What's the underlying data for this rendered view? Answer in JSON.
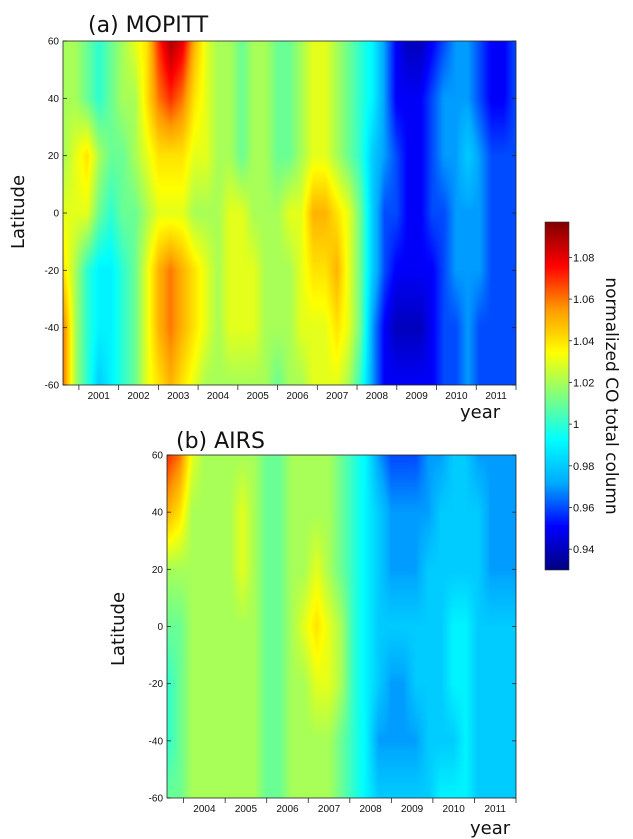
{
  "chart_data": {
    "type": "heatmap",
    "panels": [
      {
        "title": "(a) MOPITT",
        "xlabel": "year",
        "ylabel": "Latitude",
        "x_ticks": [
          "2001",
          "2002",
          "2003",
          "2004",
          "2005",
          "2006",
          "2007",
          "2008",
          "2009",
          "2010",
          "2011"
        ],
        "y_ticks": [
          "60",
          "40",
          "20",
          "0",
          "-20",
          "-40",
          "-60"
        ],
        "xlim": [
          2000.6,
          2012.0
        ],
        "ylim": [
          -60,
          60
        ],
        "time": [
          2000.6,
          2000.9,
          2001.2,
          2001.5,
          2001.8,
          2002.1,
          2002.4,
          2002.7,
          2003.0,
          2003.3,
          2003.6,
          2003.9,
          2004.2,
          2004.5,
          2004.8,
          2005.1,
          2005.4,
          2005.7,
          2006.0,
          2006.3,
          2006.6,
          2006.9,
          2007.2,
          2007.5,
          2007.8,
          2008.1,
          2008.4,
          2008.7,
          2009.0,
          2009.3,
          2009.6,
          2009.9,
          2010.2,
          2010.5,
          2010.8,
          2011.1,
          2011.4,
          2011.7,
          2012.0
        ],
        "lat": [
          60,
          40,
          20,
          0,
          -20,
          -40,
          -60
        ],
        "values": [
          [
            1.02,
            1.02,
            1.01,
            1.0,
            1.01,
            1.02,
            1.03,
            1.04,
            1.07,
            1.09,
            1.08,
            1.05,
            1.03,
            1.02,
            1.02,
            1.01,
            1.02,
            1.02,
            1.01,
            1.01,
            1.02,
            1.03,
            1.03,
            1.02,
            1.01,
            1.0,
            0.99,
            0.97,
            0.95,
            0.94,
            0.94,
            0.95,
            0.96,
            0.97,
            0.97,
            0.96,
            0.95,
            0.95,
            0.96
          ],
          [
            1.02,
            1.02,
            1.01,
            1.0,
            1.01,
            1.02,
            1.02,
            1.04,
            1.06,
            1.07,
            1.06,
            1.04,
            1.03,
            1.02,
            1.02,
            1.01,
            1.02,
            1.02,
            1.01,
            1.01,
            1.02,
            1.03,
            1.03,
            1.02,
            1.01,
            1.0,
            0.99,
            0.97,
            0.95,
            0.95,
            0.95,
            0.96,
            0.97,
            0.97,
            0.97,
            0.96,
            0.95,
            0.95,
            0.96
          ],
          [
            1.02,
            1.03,
            1.04,
            1.02,
            1.01,
            1.01,
            1.02,
            1.03,
            1.04,
            1.04,
            1.04,
            1.03,
            1.03,
            1.02,
            1.02,
            1.01,
            1.02,
            1.02,
            1.01,
            1.01,
            1.02,
            1.03,
            1.03,
            1.02,
            1.01,
            1.0,
            0.98,
            0.97,
            0.96,
            0.95,
            0.95,
            0.96,
            0.97,
            0.97,
            0.98,
            0.97,
            0.96,
            0.96,
            0.96
          ],
          [
            1.03,
            1.03,
            1.03,
            1.01,
            1.0,
            1.01,
            1.01,
            1.02,
            1.03,
            1.03,
            1.03,
            1.02,
            1.02,
            1.02,
            1.03,
            1.03,
            1.02,
            1.02,
            1.02,
            1.03,
            1.03,
            1.05,
            1.05,
            1.04,
            1.03,
            1.01,
            0.98,
            0.96,
            0.96,
            0.95,
            0.95,
            0.96,
            0.96,
            0.97,
            0.97,
            0.97,
            0.96,
            0.96,
            0.96
          ],
          [
            1.04,
            1.02,
            1.0,
            0.99,
            0.99,
            1.0,
            1.01,
            1.03,
            1.05,
            1.06,
            1.05,
            1.04,
            1.03,
            1.02,
            1.03,
            1.03,
            1.03,
            1.02,
            1.02,
            1.02,
            1.03,
            1.04,
            1.04,
            1.05,
            1.03,
            1.01,
            0.98,
            0.96,
            0.95,
            0.95,
            0.95,
            0.95,
            0.96,
            0.97,
            0.97,
            0.97,
            0.96,
            0.96,
            0.96
          ],
          [
            1.06,
            1.02,
            1.0,
            0.99,
            0.99,
            1.0,
            1.01,
            1.03,
            1.05,
            1.06,
            1.05,
            1.04,
            1.03,
            1.02,
            1.03,
            1.03,
            1.03,
            1.02,
            1.02,
            1.02,
            1.03,
            1.03,
            1.03,
            1.04,
            1.03,
            1.01,
            0.97,
            0.95,
            0.94,
            0.94,
            0.94,
            0.95,
            0.96,
            0.96,
            0.97,
            0.96,
            0.96,
            0.96,
            0.96
          ],
          [
            1.06,
            1.02,
            1.0,
            0.98,
            0.99,
            1.0,
            1.01,
            1.03,
            1.04,
            1.05,
            1.04,
            1.03,
            1.02,
            1.02,
            1.02,
            1.02,
            1.02,
            1.02,
            1.01,
            1.02,
            1.02,
            1.03,
            1.03,
            1.03,
            1.02,
            1.0,
            0.97,
            0.95,
            0.95,
            0.95,
            0.95,
            0.95,
            0.96,
            0.96,
            0.97,
            0.96,
            0.96,
            0.96,
            0.96
          ]
        ]
      },
      {
        "title": "(b) AIRS",
        "xlabel": "year",
        "ylabel": "Latitude",
        "x_ticks": [
          "2004",
          "2005",
          "2006",
          "2007",
          "2008",
          "2009",
          "2010",
          "2011"
        ],
        "y_ticks": [
          "60",
          "40",
          "20",
          "0",
          "-20",
          "-40",
          "-60"
        ],
        "xlim": [
          2003.6,
          2012.0
        ],
        "ylim": [
          -60,
          60
        ],
        "time": [
          2003.6,
          2003.9,
          2004.2,
          2004.5,
          2004.8,
          2005.1,
          2005.4,
          2005.7,
          2006.0,
          2006.3,
          2006.6,
          2006.9,
          2007.2,
          2007.5,
          2007.8,
          2008.1,
          2008.4,
          2008.7,
          2009.0,
          2009.3,
          2009.6,
          2009.9,
          2010.2,
          2010.5,
          2010.8,
          2011.1,
          2011.4,
          2011.7,
          2012.0
        ],
        "lat": [
          60,
          40,
          20,
          0,
          -20,
          -40,
          -60
        ],
        "values": [
          [
            1.07,
            1.06,
            1.03,
            1.02,
            1.02,
            1.02,
            1.02,
            1.02,
            1.01,
            1.01,
            1.02,
            1.02,
            1.02,
            1.02,
            1.01,
            1.0,
            0.99,
            0.97,
            0.96,
            0.96,
            0.96,
            0.97,
            0.97,
            0.98,
            0.98,
            0.97,
            0.97,
            0.97,
            0.97
          ],
          [
            1.05,
            1.04,
            1.02,
            1.02,
            1.02,
            1.02,
            1.03,
            1.02,
            1.01,
            1.01,
            1.02,
            1.02,
            1.02,
            1.02,
            1.01,
            1.0,
            0.99,
            0.98,
            0.97,
            0.97,
            0.97,
            0.97,
            0.98,
            0.98,
            0.98,
            0.98,
            0.97,
            0.97,
            0.97
          ],
          [
            1.02,
            1.02,
            1.02,
            1.02,
            1.02,
            1.02,
            1.03,
            1.02,
            1.01,
            1.01,
            1.02,
            1.02,
            1.03,
            1.02,
            1.01,
            1.0,
            0.99,
            0.98,
            0.97,
            0.97,
            0.97,
            0.98,
            0.98,
            0.98,
            0.98,
            0.98,
            0.97,
            0.97,
            0.97
          ],
          [
            1.01,
            1.01,
            1.02,
            1.02,
            1.02,
            1.02,
            1.02,
            1.02,
            1.01,
            1.01,
            1.02,
            1.03,
            1.04,
            1.03,
            1.02,
            1.0,
            0.99,
            0.98,
            0.98,
            0.98,
            0.98,
            0.98,
            0.98,
            0.99,
            0.99,
            0.98,
            0.98,
            0.98,
            0.98
          ],
          [
            1.0,
            1.01,
            1.02,
            1.02,
            1.02,
            1.02,
            1.02,
            1.02,
            1.01,
            1.01,
            1.02,
            1.02,
            1.03,
            1.03,
            1.02,
            1.0,
            0.99,
            0.98,
            0.97,
            0.97,
            0.98,
            0.98,
            0.98,
            0.99,
            0.99,
            0.98,
            0.98,
            0.98,
            0.98
          ],
          [
            1.0,
            1.01,
            1.02,
            1.02,
            1.02,
            1.02,
            1.02,
            1.02,
            1.01,
            1.01,
            1.02,
            1.02,
            1.02,
            1.02,
            1.01,
            1.0,
            0.99,
            0.97,
            0.97,
            0.97,
            0.97,
            0.98,
            0.98,
            0.98,
            0.99,
            0.98,
            0.98,
            0.98,
            0.98
          ],
          [
            1.01,
            1.01,
            1.02,
            1.02,
            1.02,
            1.02,
            1.02,
            1.02,
            1.01,
            1.01,
            1.02,
            1.02,
            1.02,
            1.02,
            1.01,
            1.0,
            0.99,
            0.98,
            0.98,
            0.98,
            0.98,
            0.98,
            0.99,
            0.99,
            0.99,
            0.98,
            0.98,
            0.98,
            0.98
          ]
        ]
      }
    ],
    "colorbar": {
      "label": "normalized CO total column",
      "ticks": [
        "1.08",
        "1.06",
        "1.04",
        "1.02",
        "1",
        "0.98",
        "0.96",
        "0.94"
      ],
      "tick_values": [
        1.08,
        1.06,
        1.04,
        1.02,
        1.0,
        0.98,
        0.96,
        0.94
      ],
      "range": [
        0.93,
        1.097
      ],
      "colormap": [
        "#000080",
        "#0000ff",
        "#00aaff",
        "#00ffff",
        "#7fff7f",
        "#ffff00",
        "#ff9900",
        "#ff0000",
        "#800000"
      ]
    }
  }
}
